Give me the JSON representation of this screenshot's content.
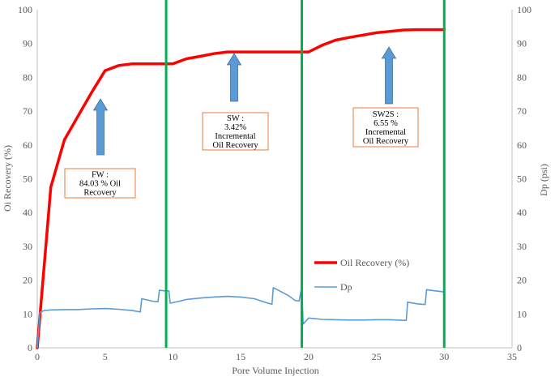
{
  "chart_data": {
    "type": "line",
    "xlabel": "Pore Volume Injection",
    "ylabel": "Oi Recovery (%)",
    "y2label": "Dp (psi)",
    "xlim": [
      0,
      35
    ],
    "ylim": [
      0,
      100
    ],
    "y2lim": [
      0,
      100
    ],
    "xticks": [
      "0",
      "5",
      "10",
      "15",
      "20",
      "25",
      "30",
      "35"
    ],
    "yticks": [
      "0",
      "10",
      "20",
      "30",
      "40",
      "50",
      "60",
      "70",
      "80",
      "90",
      "100"
    ],
    "y2ticks": [
      "0",
      "10",
      "20",
      "30",
      "40",
      "50",
      "60",
      "70",
      "80",
      "90",
      "100"
    ],
    "grid": false,
    "legend_position": "lower-right",
    "series": [
      {
        "name": "Oil Recovery (%)",
        "color": "#ff0000",
        "axis": "left",
        "x": [
          0,
          1,
          2,
          3,
          4,
          5,
          6,
          7,
          8,
          9,
          10,
          11,
          12,
          13,
          14,
          15,
          16,
          17,
          18,
          19,
          20,
          21,
          22,
          23,
          24,
          25,
          26,
          27,
          28,
          29,
          30
        ],
        "y": [
          0,
          47.5,
          61.5,
          68.5,
          75.5,
          82,
          83.5,
          84,
          84,
          84,
          84,
          85.5,
          86.2,
          87,
          87.5,
          87.5,
          87.5,
          87.5,
          87.5,
          87.5,
          87.5,
          89.5,
          91,
          91.8,
          92.5,
          93.2,
          93.6,
          94,
          94.1,
          94.1,
          94.1
        ]
      },
      {
        "name": "Dp",
        "color": "#5b9bd5",
        "axis": "right",
        "x": [
          0,
          0.2,
          0.5,
          1,
          2,
          3,
          4,
          5,
          6,
          7,
          7.6,
          7.7,
          8.5,
          8.9,
          9.0,
          9.5,
          9.7,
          9.8,
          10.5,
          11,
          12,
          13,
          14,
          15,
          16,
          17,
          17.3,
          17.4,
          18.5,
          18.9,
          19.0,
          19.3,
          19.5,
          19.6,
          20,
          21,
          22,
          23,
          24,
          25,
          26,
          27,
          27.2,
          27.3,
          28,
          28.5,
          28.6,
          28.7,
          29,
          30
        ],
        "y": [
          0,
          10.5,
          11,
          11.2,
          11.3,
          11.3,
          11.5,
          11.6,
          11.4,
          11.0,
          10.6,
          14.5,
          13.8,
          13.6,
          17.0,
          16.8,
          16.8,
          13.2,
          13.8,
          14.3,
          14.7,
          15.0,
          15.2,
          15.0,
          14.5,
          13.2,
          12.9,
          17.8,
          15.5,
          14.3,
          14.0,
          13.8,
          18.0,
          7.0,
          8.8,
          8.4,
          8.3,
          8.2,
          8.2,
          8.3,
          8.3,
          8.1,
          8.1,
          13.5,
          13.0,
          12.8,
          12.8,
          17.2,
          17.0,
          16.5
        ]
      }
    ],
    "vertical_lines": {
      "color": "#00b050",
      "x": [
        9.5,
        19.5,
        30
      ]
    },
    "annotations": [
      {
        "id": "fw",
        "lines": [
          "FW :",
          "84.03 % Oil",
          "Recovery"
        ],
        "box_color": "#ed7d31",
        "arrow_color": "#5b9bd5"
      },
      {
        "id": "sw",
        "lines": [
          "SW :",
          "3.42%",
          "Incremental",
          "Oil Recovery"
        ],
        "box_color": "#ed7d31",
        "arrow_color": "#5b9bd5"
      },
      {
        "id": "sw2s",
        "lines": [
          "SW2S :",
          "6.55 %",
          "Incremental",
          "Oil Recovery"
        ],
        "box_color": "#ed7d31",
        "arrow_color": "#5b9bd5"
      }
    ]
  }
}
